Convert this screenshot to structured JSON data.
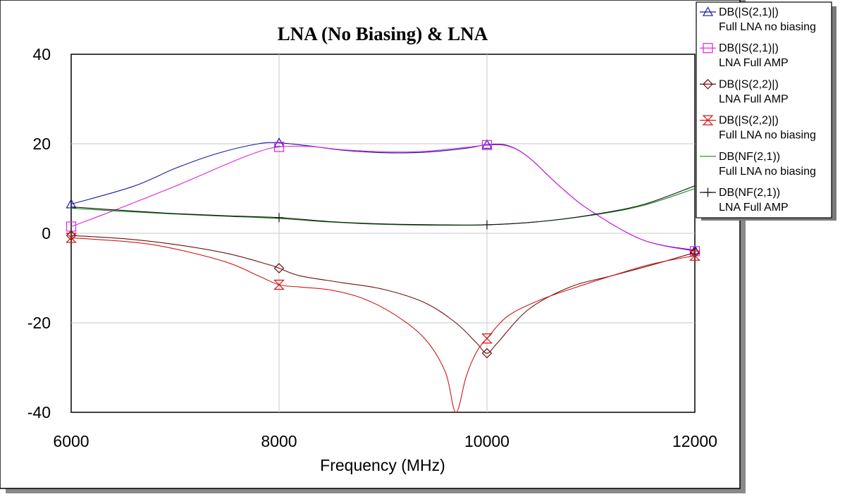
{
  "chart_data": {
    "type": "line",
    "title": "LNA (No Biasing) & LNA",
    "xlabel": "Frequency (MHz)",
    "ylabel": "",
    "xlim": [
      6000,
      12000
    ],
    "ylim": [
      -40,
      40
    ],
    "xticks": [
      6000,
      8000,
      10000,
      12000
    ],
    "yticks": [
      40,
      20,
      0,
      -20,
      -40
    ],
    "grid": true,
    "legend_position": "top-right",
    "series": [
      {
        "name": "DB(|S(2,1)|)",
        "sub": "Full LNA no biasing",
        "color": "#1a1aa6",
        "marker": "triangle-up",
        "x": [
          6000,
          6600,
          7000,
          7400,
          7800,
          8000,
          8300,
          8600,
          9000,
          9400,
          9800,
          10000,
          10200,
          10400,
          10700,
          11000,
          11500,
          12000
        ],
        "y": [
          6.5,
          10.5,
          14.5,
          17.8,
          20.0,
          20.2,
          19.5,
          18.6,
          18.0,
          18.1,
          19.0,
          19.8,
          19.6,
          17.0,
          10.5,
          5.0,
          -1.5,
          -3.8
        ],
        "markers_x": [
          6000,
          8000,
          10000,
          12000
        ],
        "markers_y": [
          6.5,
          20.2,
          19.8,
          -3.8
        ]
      },
      {
        "name": "DB(|S(2,1)|)",
        "sub": "LNA Full AMP",
        "color": "#e020e0",
        "marker": "square",
        "x": [
          6000,
          6400,
          7000,
          7500,
          7800,
          8000,
          8300,
          8600,
          9000,
          9400,
          9800,
          10000,
          10200,
          10400,
          10700,
          11000,
          11500,
          12000
        ],
        "y": [
          1.5,
          5.0,
          10.5,
          15.5,
          18.2,
          19.3,
          19.4,
          18.7,
          18.2,
          18.3,
          19.2,
          19.7,
          19.5,
          17.0,
          10.5,
          5.0,
          -1.5,
          -4.0
        ],
        "markers_x": [
          6000,
          8000,
          10000,
          12000
        ],
        "markers_y": [
          1.5,
          19.3,
          19.7,
          -4.0
        ]
      },
      {
        "name": "DB(|S(2,2)|)",
        "sub": "LNA Full AMP",
        "color": "#6b1010",
        "marker": "diamond",
        "x": [
          6000,
          6500,
          7000,
          7500,
          7900,
          8000,
          8200,
          8600,
          9000,
          9400,
          9700,
          9900,
          10000,
          10100,
          10400,
          10800,
          11200,
          11600,
          12000
        ],
        "y": [
          -0.5,
          -1.2,
          -2.5,
          -4.5,
          -7.0,
          -7.8,
          -9.5,
          -11.0,
          -12.5,
          -15.5,
          -20.0,
          -24.5,
          -26.8,
          -24.5,
          -17.0,
          -12.0,
          -9.5,
          -7.0,
          -4.3
        ],
        "markers_x": [
          6000,
          8000,
          10000,
          12000
        ],
        "markers_y": [
          -0.5,
          -7.8,
          -26.8,
          -4.3
        ]
      },
      {
        "name": "DB(|S(2,2)|)",
        "sub": "Full LNA no biasing",
        "color": "#d01818",
        "marker": "hourglass",
        "x": [
          6000,
          6600,
          7000,
          7500,
          7800,
          8000,
          8200,
          8500,
          8800,
          9100,
          9400,
          9600,
          9700,
          9800,
          9900,
          10000,
          10200,
          10500,
          10800,
          11200,
          11600,
          12000
        ],
        "y": [
          -1.0,
          -2.0,
          -3.5,
          -6.5,
          -9.5,
          -11.5,
          -12.0,
          -12.7,
          -14.5,
          -18.0,
          -23.5,
          -31.0,
          -40.0,
          -32.0,
          -26.5,
          -23.5,
          -18.5,
          -15.0,
          -12.5,
          -9.5,
          -6.8,
          -5.0
        ],
        "markers_x": [
          6000,
          8000,
          10000,
          12000
        ],
        "markers_y": [
          -1.0,
          -11.5,
          -23.5,
          -5.0
        ]
      },
      {
        "name": "DB(NF(2,1))",
        "sub": "Full LNA no biasing",
        "color": "#1a8a1a",
        "marker": "none",
        "x": [
          6000,
          6500,
          7000,
          7500,
          8000,
          8500,
          9000,
          9500,
          10000,
          10500,
          11000,
          11500,
          12000
        ],
        "y": [
          5.6,
          4.9,
          4.3,
          3.8,
          3.3,
          2.5,
          2.0,
          1.8,
          1.9,
          2.6,
          4.0,
          6.2,
          10.0
        ],
        "markers_x": [],
        "markers_y": []
      },
      {
        "name": "DB(NF(2,1))",
        "sub": "LNA Full AMP",
        "color": "#111111",
        "marker": "plus",
        "x": [
          6000,
          6500,
          7000,
          7500,
          8000,
          8500,
          9000,
          9500,
          10000,
          10500,
          11000,
          11500,
          12000
        ],
        "y": [
          5.9,
          5.1,
          4.4,
          3.9,
          3.5,
          2.6,
          2.1,
          1.9,
          1.9,
          2.6,
          4.1,
          6.4,
          10.6
        ],
        "markers_x": [
          8000,
          10000
        ],
        "markers_y": [
          3.5,
          1.9
        ]
      }
    ]
  }
}
